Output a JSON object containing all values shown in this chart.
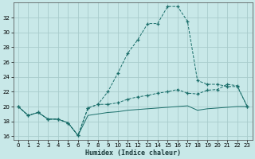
{
  "xlabel": "Humidex (Indice chaleur)",
  "background_color": "#c8e8e8",
  "grid_color": "#a8cccc",
  "line_color": "#1a6e6a",
  "xlim": [
    -0.5,
    23.5
  ],
  "ylim": [
    15.5,
    34.0
  ],
  "xticks": [
    0,
    1,
    2,
    3,
    4,
    5,
    6,
    7,
    8,
    9,
    10,
    11,
    12,
    13,
    14,
    15,
    16,
    17,
    18,
    19,
    20,
    21,
    22,
    23
  ],
  "yticks": [
    16,
    18,
    20,
    22,
    24,
    26,
    28,
    30,
    32
  ],
  "line_upper_x": [
    0,
    1,
    2,
    3,
    4,
    5,
    6,
    7,
    8,
    9,
    10,
    11,
    12,
    13,
    14,
    15,
    16,
    17,
    18,
    19,
    20,
    21,
    22,
    23
  ],
  "line_upper_y": [
    20.0,
    18.8,
    19.2,
    18.3,
    18.3,
    17.8,
    16.1,
    19.8,
    20.3,
    22.0,
    24.5,
    27.2,
    29.0,
    31.2,
    31.2,
    33.5,
    33.5,
    31.5,
    23.5,
    23.0,
    23.0,
    22.7,
    22.7,
    20.0
  ],
  "line_mid_x": [
    0,
    1,
    2,
    3,
    4,
    5,
    6,
    7,
    8,
    9,
    10,
    11,
    12,
    13,
    14,
    15,
    16,
    17,
    18,
    19,
    20,
    21,
    22,
    23
  ],
  "line_mid_y": [
    20.0,
    18.8,
    19.2,
    18.3,
    18.3,
    17.8,
    16.1,
    19.8,
    20.3,
    20.3,
    20.5,
    21.0,
    21.3,
    21.5,
    21.8,
    22.0,
    22.3,
    21.8,
    21.7,
    22.2,
    22.3,
    23.0,
    22.8,
    20.0
  ],
  "line_lower_x": [
    0,
    1,
    2,
    3,
    4,
    5,
    6,
    7,
    8,
    9,
    10,
    11,
    12,
    13,
    14,
    15,
    16,
    17,
    18,
    19,
    20,
    21,
    22,
    23
  ],
  "line_lower_y": [
    20.0,
    18.8,
    19.2,
    18.3,
    18.3,
    17.8,
    16.1,
    18.8,
    19.0,
    19.2,
    19.3,
    19.5,
    19.6,
    19.7,
    19.8,
    19.9,
    20.0,
    20.1,
    19.5,
    19.7,
    19.8,
    19.9,
    20.0,
    20.0
  ],
  "xlabel_fontsize": 6,
  "tick_fontsize": 5,
  "figwidth": 3.2,
  "figheight": 2.0,
  "dpi": 100
}
